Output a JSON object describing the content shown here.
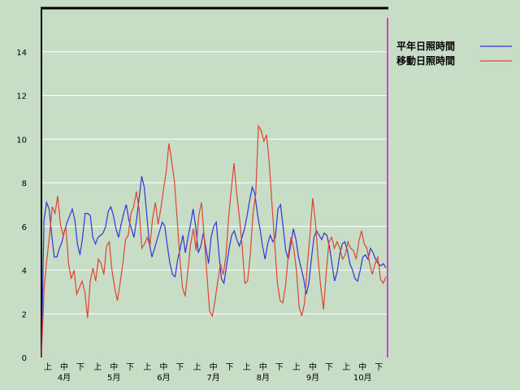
{
  "chart_data": {
    "type": "line",
    "title": "",
    "xlabel": "",
    "ylabel": "",
    "ylim": [
      0,
      16
    ],
    "yticks": [
      0,
      2,
      4,
      6,
      8,
      10,
      12,
      14
    ],
    "grid": "horizontal",
    "legend_position": "top-right",
    "x_sub_labels": [
      "上",
      "中",
      "下"
    ],
    "month_labels": [
      "4月",
      "5月",
      "6月",
      "7月",
      "8月",
      "9月",
      "10月"
    ],
    "colors": {
      "background": "#c8ddc6",
      "grid": "#ffffff",
      "axis": "#000000",
      "marker_line": "#cc44cc"
    },
    "series": [
      {
        "name": "平年日照時間",
        "color": "#3333dd",
        "values": [
          0.0,
          6.3,
          7.1,
          6.8,
          5.6,
          4.6,
          4.6,
          5.0,
          5.3,
          5.8,
          6.2,
          6.5,
          6.8,
          6.3,
          5.2,
          4.7,
          5.5,
          6.6,
          6.6,
          6.5,
          5.5,
          5.2,
          5.5,
          5.6,
          5.7,
          6.0,
          6.7,
          6.9,
          6.5,
          5.9,
          5.5,
          6.1,
          6.6,
          7.0,
          6.3,
          5.9,
          5.5,
          6.3,
          7.3,
          8.3,
          7.8,
          6.5,
          5.2,
          4.6,
          5.0,
          5.4,
          5.8,
          6.2,
          6.0,
          5.1,
          4.3,
          3.8,
          3.7,
          4.5,
          5.0,
          5.6,
          4.8,
          5.5,
          6.1,
          6.8,
          6.0,
          4.8,
          5.1,
          5.7,
          5.0,
          4.3,
          5.5,
          6.0,
          6.2,
          4.8,
          3.6,
          3.4,
          4.2,
          5.0,
          5.6,
          5.8,
          5.4,
          5.1,
          5.5,
          5.9,
          6.5,
          7.2,
          7.8,
          7.5,
          6.6,
          5.9,
          5.1,
          4.5,
          5.2,
          5.6,
          5.3,
          5.5,
          6.8,
          7.0,
          6.0,
          4.9,
          4.5,
          5.2,
          5.9,
          5.4,
          4.6,
          4.1,
          3.6,
          2.9,
          3.4,
          4.5,
          5.5,
          5.8,
          5.6,
          5.4,
          5.7,
          5.6,
          5.1,
          4.3,
          3.5,
          3.9,
          4.7,
          5.2,
          5.3,
          4.9,
          4.3,
          4.0,
          3.6,
          3.5,
          4.0,
          4.6,
          4.7,
          4.5,
          5.0,
          4.8,
          4.5,
          4.3,
          4.2,
          4.3,
          4.1
        ]
      },
      {
        "name": "移動日照時間",
        "color": "#dd4433",
        "values": [
          0.0,
          3.2,
          4.5,
          5.6,
          6.9,
          6.6,
          7.4,
          6.1,
          5.6,
          6.0,
          4.3,
          3.6,
          4.0,
          2.9,
          3.2,
          3.5,
          3.0,
          1.8,
          3.5,
          4.1,
          3.5,
          4.5,
          4.3,
          3.8,
          5.1,
          5.3,
          4.0,
          3.2,
          2.6,
          3.4,
          4.3,
          5.4,
          5.6,
          6.6,
          6.9,
          7.6,
          6.8,
          5.0,
          5.2,
          5.5,
          5.1,
          6.4,
          7.1,
          6.1,
          6.8,
          7.7,
          8.5,
          9.8,
          9.0,
          8.1,
          6.4,
          4.6,
          3.2,
          2.8,
          4.0,
          5.2,
          5.9,
          4.9,
          6.5,
          7.1,
          5.5,
          3.8,
          2.1,
          1.9,
          2.6,
          3.5,
          4.3,
          3.8,
          4.6,
          6.4,
          7.7,
          8.9,
          7.5,
          6.4,
          5.1,
          3.4,
          3.5,
          4.7,
          6.6,
          7.5,
          10.6,
          10.4,
          9.9,
          10.2,
          8.9,
          7.0,
          5.2,
          3.4,
          2.6,
          2.5,
          3.3,
          4.7,
          5.5,
          5.0,
          4.0,
          2.3,
          1.9,
          2.5,
          4.2,
          5.6,
          7.3,
          6.2,
          4.5,
          3.2,
          2.2,
          3.9,
          5.3,
          5.5,
          5.0,
          5.3,
          5.0,
          4.5,
          4.7,
          5.3,
          5.0,
          4.9,
          4.5,
          5.3,
          5.8,
          5.2,
          5.0,
          4.3,
          3.8,
          4.3,
          4.6,
          3.6,
          3.4,
          3.7
        ]
      }
    ]
  }
}
